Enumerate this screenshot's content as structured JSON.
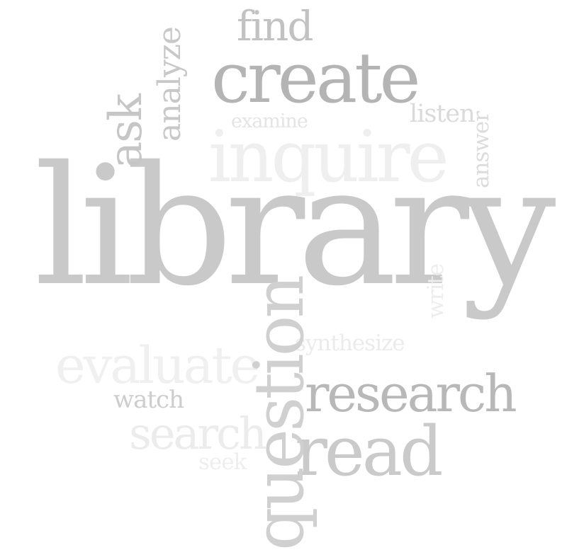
{
  "word_cloud": {
    "words": [
      {
        "key": "find",
        "text": "find",
        "color": "#c2c2c2"
      },
      {
        "key": "create",
        "text": "create",
        "color": "#b4b4b4"
      },
      {
        "key": "examine",
        "text": "examine",
        "color": "#e4e4e4"
      },
      {
        "key": "listen",
        "text": "listen",
        "color": "#dadada"
      },
      {
        "key": "inquire",
        "text": "inquire",
        "color": "#efefef"
      },
      {
        "key": "library",
        "text": "library",
        "color": "#c9c9c9"
      },
      {
        "key": "evaluate",
        "text": "evaluate",
        "color": "#f0f0f0"
      },
      {
        "key": "synthesize",
        "text": "synthesize",
        "color": "#ebebeb"
      },
      {
        "key": "research",
        "text": "research",
        "color": "#b8b8b8"
      },
      {
        "key": "watch",
        "text": "watch",
        "color": "#cdcdcd"
      },
      {
        "key": "search",
        "text": "search",
        "color": "#ececec"
      },
      {
        "key": "read",
        "text": "read",
        "color": "#cacaca"
      },
      {
        "key": "seek",
        "text": "seek",
        "color": "#eeeeee"
      },
      {
        "key": "ask",
        "text": "ask",
        "color": "#c6c6c6"
      },
      {
        "key": "analyze",
        "text": "analyze",
        "color": "#c8c8c8"
      },
      {
        "key": "answer",
        "text": "answer",
        "color": "#dcdcdc"
      },
      {
        "key": "write",
        "text": "write",
        "color": "#ededed"
      },
      {
        "key": "question",
        "text": "question",
        "color": "#d0d0d0"
      }
    ]
  }
}
